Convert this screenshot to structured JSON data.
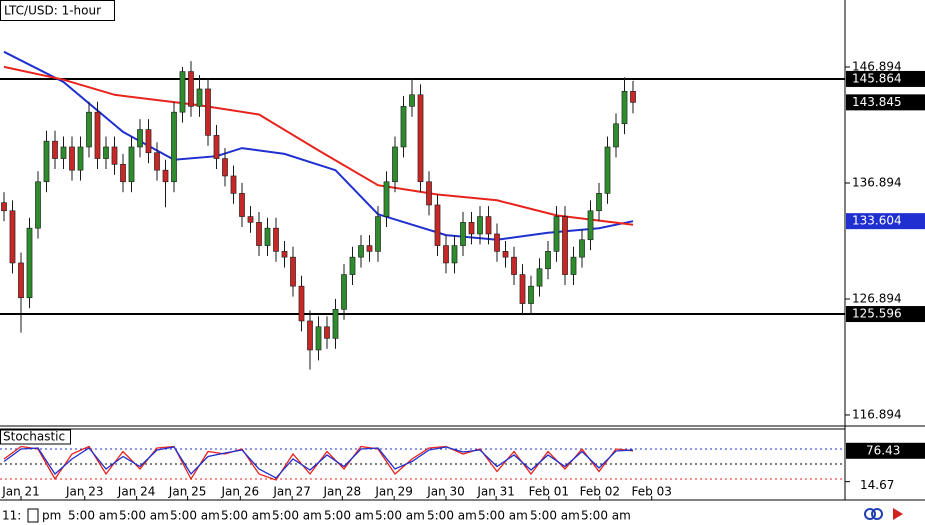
{
  "chart_data": {
    "type": "candlestick",
    "title": "LTC/USD: 1-hour",
    "x": [
      0,
      1,
      2,
      3,
      4,
      5,
      6,
      7,
      8,
      9,
      10,
      11,
      12,
      13,
      14,
      15,
      16,
      17,
      18,
      19,
      20,
      21,
      22,
      23,
      24,
      25,
      26,
      27,
      28,
      29,
      30,
      31,
      32,
      33,
      34,
      35,
      36,
      37,
      38,
      39,
      40,
      41,
      42,
      43,
      44,
      45,
      46,
      47,
      48,
      49,
      50,
      51,
      52,
      53,
      54,
      55,
      56,
      57,
      58,
      59,
      60,
      61,
      62,
      63,
      64,
      65,
      66,
      67,
      68,
      69,
      70,
      71,
      72,
      73,
      74
    ],
    "open": [
      135.2,
      134.5,
      130,
      127,
      133,
      137,
      140.5,
      139,
      140,
      138,
      140,
      143,
      139,
      140,
      138.5,
      137,
      140,
      141.5,
      139.5,
      138,
      137,
      143,
      146.5,
      143.5,
      145,
      141,
      139,
      137.5,
      136,
      134,
      133.5,
      131.5,
      133,
      131,
      130.5,
      128,
      125,
      122.5,
      124.5,
      123.5,
      126,
      129,
      130.5,
      131.5,
      131,
      134,
      137,
      140,
      143.5,
      144.5,
      137,
      135,
      131.5,
      130,
      131.5,
      133.5,
      132.5,
      134,
      132.5,
      131,
      130.5,
      129,
      126.5,
      128,
      129.5,
      131,
      134,
      129,
      130.5,
      132,
      134.5,
      136,
      140,
      142,
      144.8
    ],
    "high": [
      136.1,
      135.4,
      130.9,
      133.9,
      137.9,
      141.4,
      141.4,
      140.9,
      140.9,
      140.9,
      143.9,
      143.9,
      140.9,
      140.9,
      139.4,
      140.9,
      142.4,
      142.4,
      140.4,
      138.9,
      143.9,
      146.9,
      147.4,
      146.2,
      145.9,
      141.9,
      139.9,
      138.4,
      136.9,
      134.9,
      134.4,
      133.9,
      133.9,
      131.9,
      131.4,
      128.9,
      125.9,
      125.4,
      125.4,
      126.9,
      129.9,
      131.4,
      132.4,
      132.4,
      134.9,
      137.9,
      140.9,
      144.4,
      145.9,
      145.4,
      137.9,
      135.9,
      132.4,
      132.4,
      134.4,
      134.4,
      134.9,
      134.9,
      133.4,
      131.9,
      131.4,
      129.9,
      128.9,
      130.4,
      131.9,
      134.9,
      134.9,
      131.4,
      132.9,
      135.4,
      136.9,
      140.9,
      142.9,
      146,
      145.7
    ],
    "low": [
      133.6,
      129.1,
      124,
      126.1,
      132.1,
      136.1,
      138.1,
      138.1,
      137.1,
      137.1,
      139.1,
      138.1,
      138.1,
      137.6,
      136.1,
      136.1,
      139.1,
      138.6,
      137.1,
      134.8,
      136.1,
      142.1,
      142.6,
      142.6,
      140.1,
      138.1,
      136.6,
      135.1,
      133.1,
      132.6,
      130.6,
      130.6,
      130.1,
      129.6,
      127.1,
      124.1,
      120.8,
      121.6,
      122.6,
      122.6,
      125.1,
      128.1,
      129.6,
      130.1,
      130.1,
      133.1,
      136.1,
      139.1,
      142.6,
      136.1,
      134.1,
      130.6,
      129.1,
      129.1,
      130.6,
      131.6,
      131.6,
      131.6,
      130.1,
      129.6,
      128.1,
      125.6,
      125.6,
      127.1,
      128.6,
      130.1,
      128.1,
      128.1,
      129.6,
      131.1,
      133.6,
      135.1,
      139.1,
      141.1,
      142.9
    ],
    "close": [
      134.5,
      130,
      127,
      133,
      137,
      140.5,
      139,
      140,
      138,
      140,
      143,
      139,
      140,
      138.5,
      137,
      140,
      141.5,
      139.5,
      138,
      137,
      143,
      146.5,
      143.5,
      145,
      141,
      139,
      137.5,
      136,
      134,
      133.5,
      131.5,
      133,
      131,
      130.5,
      128,
      125,
      122.5,
      124.5,
      123.5,
      126,
      129,
      130.5,
      131.5,
      131,
      134,
      137,
      140,
      143.5,
      144.5,
      137,
      135,
      131.5,
      130,
      131.5,
      133.5,
      132.5,
      134,
      132.5,
      131,
      130.5,
      129,
      126.5,
      128,
      129.5,
      131,
      134,
      129,
      130.5,
      132,
      134.5,
      136,
      140,
      142,
      144.8,
      143.845
    ],
    "up_color": "#2e8b2e",
    "down_color": "#c62828",
    "xlim": [
      -0.47,
      98.94
    ],
    "ylim": [
      116.03,
      152.67
    ],
    "yticks": [
      116.894,
      126.894,
      136.894,
      146.894
    ],
    "xticks": [
      {
        "value": 2,
        "label": "Jan 21"
      },
      {
        "value": 9.5,
        "label": "Jan 23"
      },
      {
        "value": 15.6,
        "label": "Jan 24"
      },
      {
        "value": 21.6,
        "label": "Jan 25"
      },
      {
        "value": 27.8,
        "label": "Jan 26"
      },
      {
        "value": 33.9,
        "label": "Jan 27"
      },
      {
        "value": 39.8,
        "label": "Jan 28"
      },
      {
        "value": 45.9,
        "label": "Jan 29"
      },
      {
        "value": 52,
        "label": "Jan 30"
      },
      {
        "value": 57.9,
        "label": "Jan 31"
      },
      {
        "value": 64.1,
        "label": "Feb 01"
      },
      {
        "value": 70.1,
        "label": "Feb 02"
      },
      {
        "value": 76.2,
        "label": "Feb 03"
      }
    ],
    "levels": [
      145.864,
      125.596
    ],
    "moving_averages": [
      {
        "color": "#1f2fd0",
        "x": [
          0,
          7,
          14,
          20,
          25,
          28,
          33,
          39,
          44,
          52,
          58,
          64,
          70,
          74
        ],
        "values": [
          148.2,
          145.6,
          141.3,
          138.9,
          139.2,
          139.9,
          139.4,
          138,
          134.2,
          132.4,
          132,
          132.6,
          133,
          133.604
        ]
      },
      {
        "color": "#e8231c",
        "x": [
          0,
          7,
          13,
          23,
          30,
          37,
          44,
          51,
          58,
          65,
          74
        ],
        "values": [
          146.9,
          145.8,
          144.5,
          143.6,
          142.8,
          139.7,
          136.7,
          135.9,
          135.4,
          134.1,
          133.3
        ]
      }
    ]
  },
  "indicator": {
    "title": "Stochastic",
    "ylim": [
      -22,
      122
    ],
    "yticks": [
      14.67
    ],
    "levels": [
      {
        "value": 80,
        "color": "#1f2fd0"
      },
      {
        "value": 50,
        "color": "#000000"
      },
      {
        "value": 20,
        "color": "#e8231c"
      }
    ],
    "series": [
      {
        "color": "#e8231c",
        "x": [
          0,
          2,
          4,
          6,
          8,
          10,
          12,
          14,
          16,
          18,
          20,
          22,
          24,
          26,
          28,
          30,
          32,
          34,
          36,
          38,
          40,
          42,
          44,
          46,
          48,
          50,
          52,
          54,
          56,
          58,
          60,
          62,
          64,
          66,
          68,
          70,
          72,
          74
        ],
        "values": [
          60,
          85,
          80,
          20,
          70,
          85,
          30,
          75,
          40,
          82,
          85,
          20,
          75,
          70,
          80,
          30,
          18,
          70,
          30,
          75,
          40,
          85,
          80,
          30,
          60,
          82,
          85,
          70,
          80,
          35,
          75,
          30,
          75,
          40,
          80,
          35,
          80,
          76.43
        ]
      },
      {
        "color": "#1f2fd0",
        "x": [
          0,
          2,
          4,
          6,
          8,
          10,
          12,
          14,
          16,
          18,
          20,
          22,
          24,
          26,
          28,
          30,
          32,
          34,
          36,
          38,
          40,
          42,
          44,
          46,
          48,
          50,
          52,
          54,
          56,
          58,
          60,
          62,
          64,
          66,
          68,
          70,
          72,
          74
        ],
        "values": [
          55,
          80,
          82,
          30,
          60,
          82,
          40,
          65,
          45,
          78,
          84,
          30,
          65,
          72,
          78,
          40,
          22,
          60,
          38,
          68,
          45,
          80,
          82,
          40,
          55,
          78,
          84,
          74,
          78,
          45,
          68,
          38,
          68,
          45,
          75,
          42,
          76,
          78
        ]
      }
    ]
  },
  "bottom_strip": [
    "11:",
    "pm",
    "5:00 am",
    "5:00 am",
    "5:00 am",
    "5:00 am",
    "5:00 am",
    "5:00 am",
    "5:00 am",
    "5:00 am",
    "5:00 am",
    "5:00 am",
    "5:00 am"
  ]
}
